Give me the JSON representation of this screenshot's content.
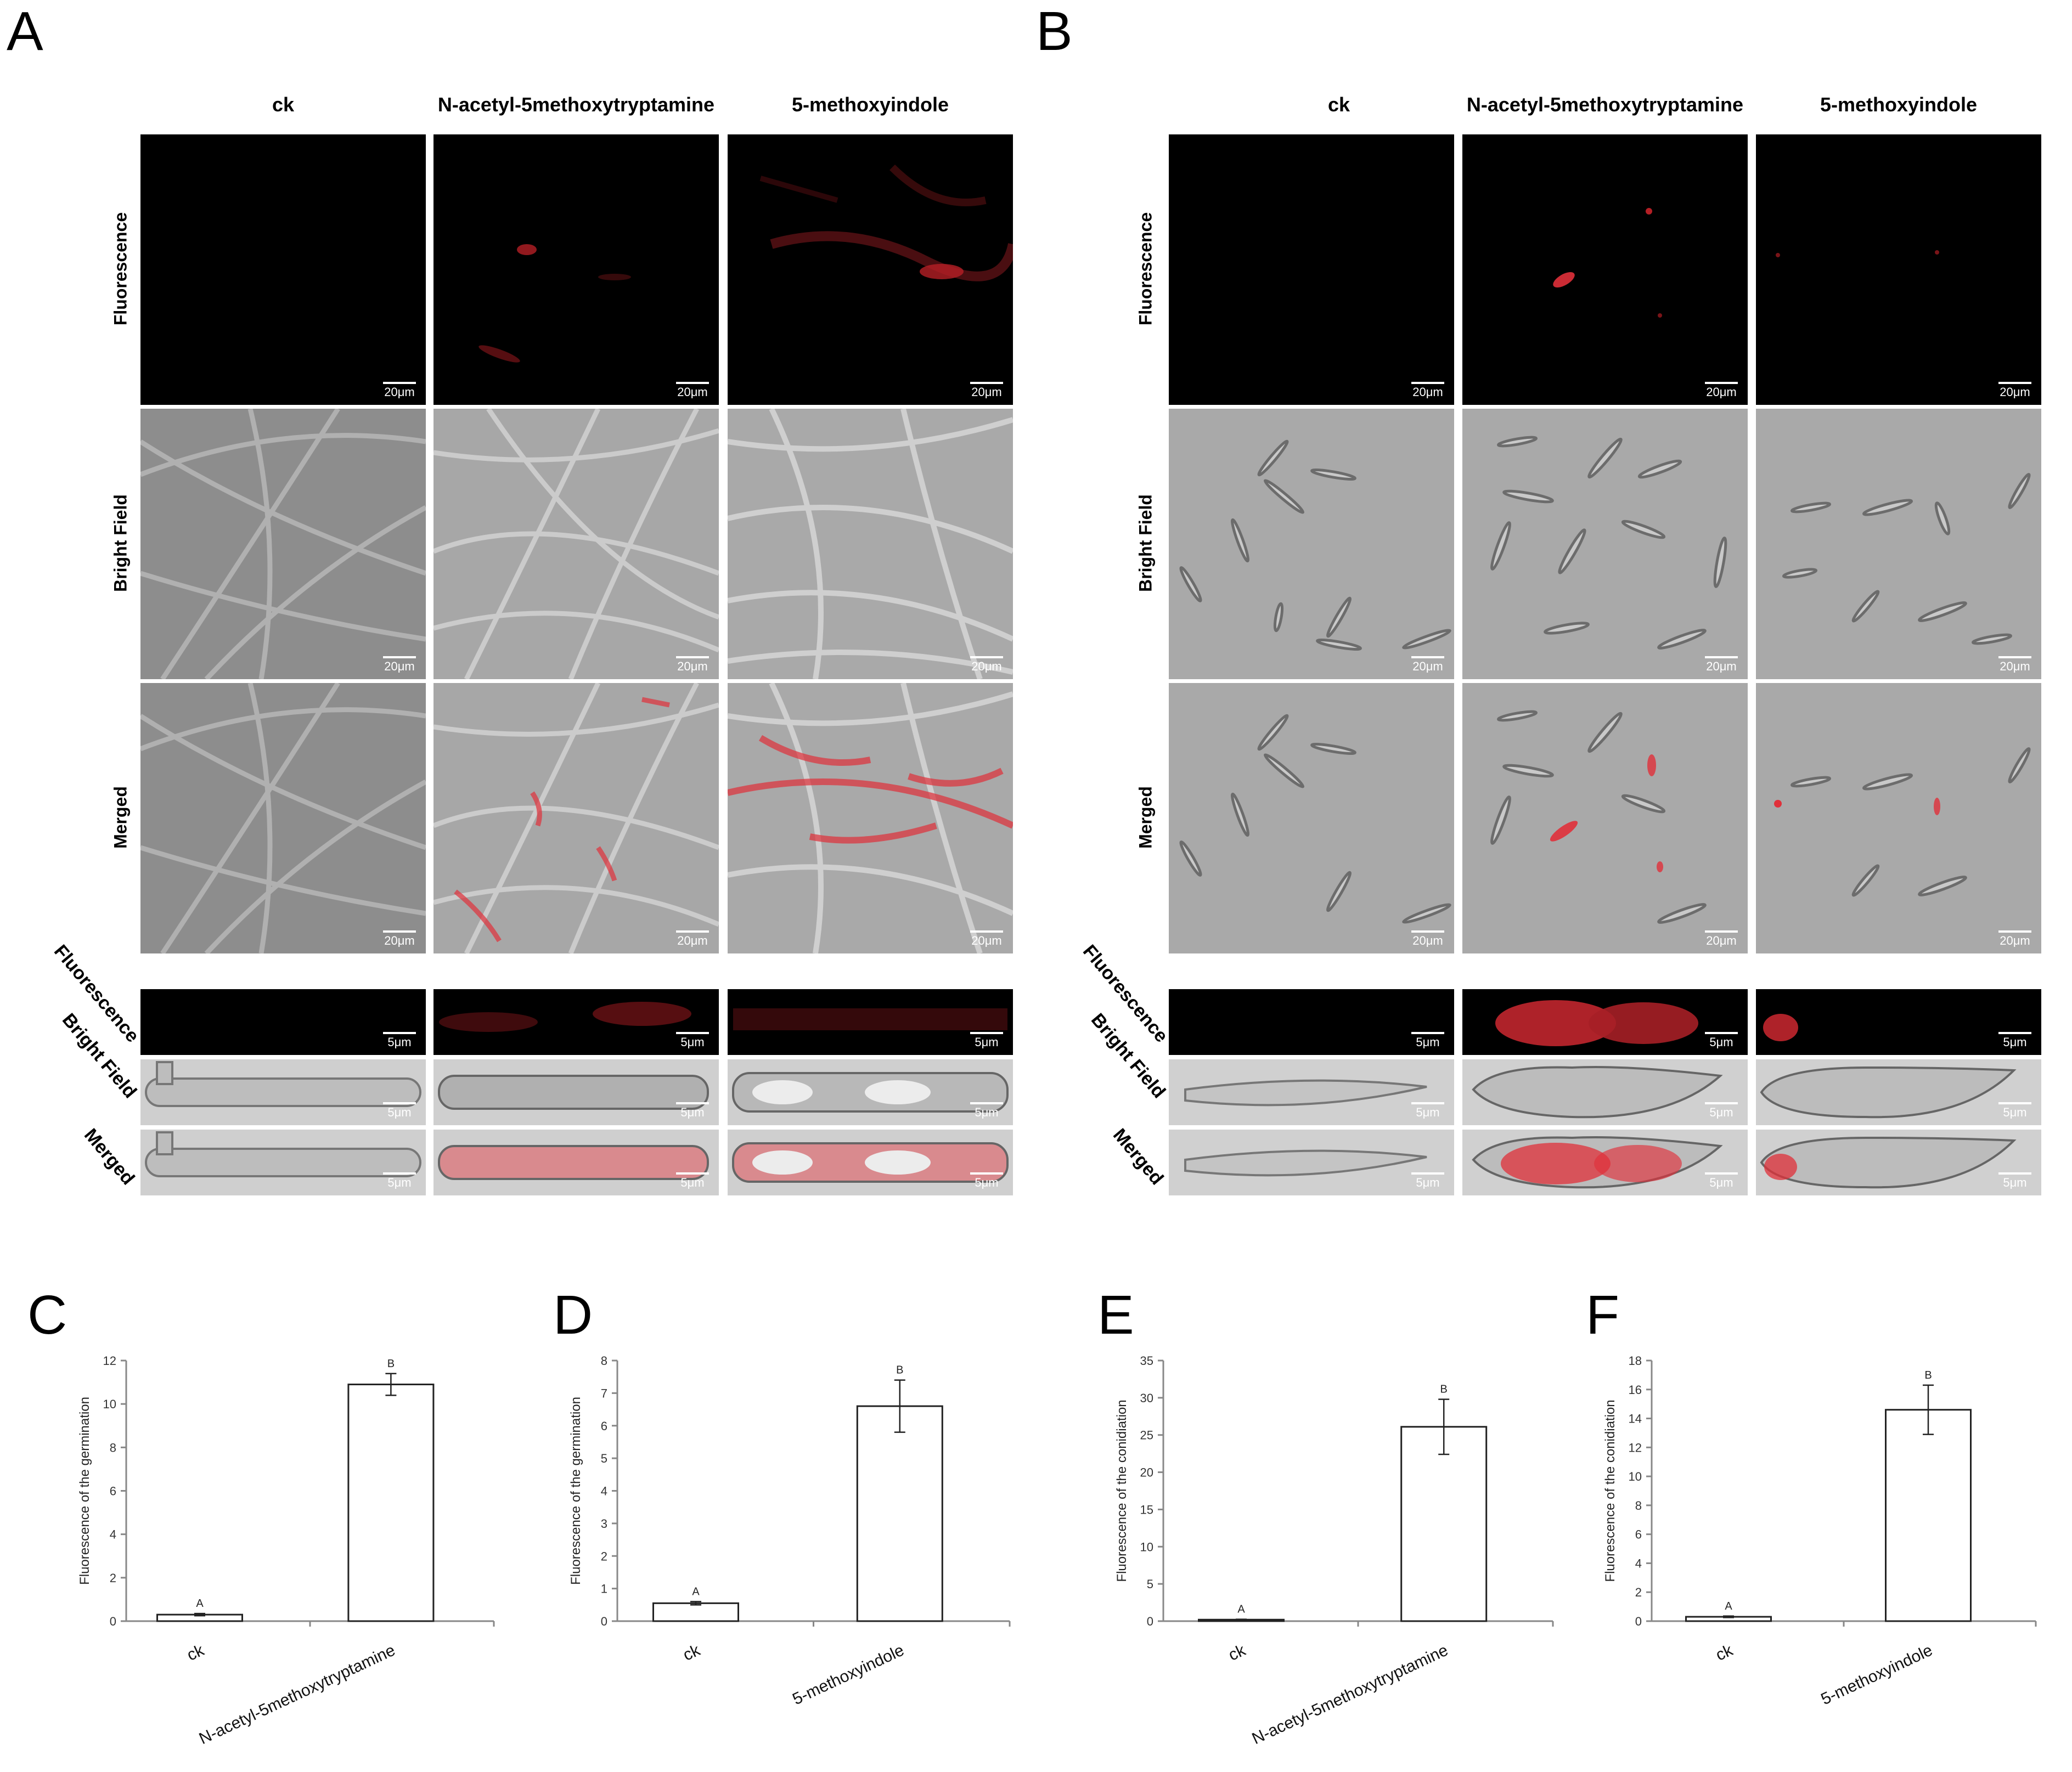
{
  "panel_letters": [
    "A",
    "B",
    "C",
    "D",
    "E",
    "F"
  ],
  "panelA": {
    "columns": [
      "ck",
      "N-acetyl-5methoxytryptamine",
      "5-methoxyindole"
    ],
    "rows": [
      "Fluorescence",
      "Bright Field",
      "Merged"
    ],
    "scale_large": "20μm",
    "scale_small": "5μm"
  },
  "panelB": {
    "columns": [
      "ck",
      "N-acetyl-5methoxytryptamine",
      "5-methoxyindole"
    ],
    "rows": [
      "Fluorescence",
      "Bright Field",
      "Merged"
    ],
    "scale_large": "20μm",
    "scale_small": "5μm"
  },
  "colors": {
    "fluorescence_red": "#e0303a",
    "bar_fill": "#ffffff",
    "axis": "#888888"
  },
  "chart_data": [
    {
      "panel": "C",
      "type": "bar",
      "categories": [
        "ck",
        "N-acetyl-5methoxytryptamine"
      ],
      "values": [
        0.3,
        10.9
      ],
      "errors": [
        0.05,
        0.5
      ],
      "sig_letters": [
        "A",
        "B"
      ],
      "ylabel": "Fluorescence of the germination",
      "ylim": [
        0,
        12
      ],
      "yticks": [
        0,
        2,
        4,
        6,
        8,
        10,
        12
      ]
    },
    {
      "panel": "D",
      "type": "bar",
      "categories": [
        "ck",
        "5-methoxyindole"
      ],
      "values": [
        0.55,
        6.6
      ],
      "errors": [
        0.05,
        0.8
      ],
      "sig_letters": [
        "A",
        "B"
      ],
      "ylabel": "Fluorescence of the germination",
      "ylim": [
        0,
        8
      ],
      "yticks": [
        0,
        1,
        2,
        3,
        4,
        5,
        6,
        7,
        8
      ]
    },
    {
      "panel": "E",
      "type": "bar",
      "categories": [
        "ck",
        "N-acetyl-5methoxytryptamine"
      ],
      "values": [
        0.2,
        26.1
      ],
      "errors": [
        0.05,
        3.7
      ],
      "sig_letters": [
        "A",
        "B"
      ],
      "ylabel": "Fluorescence of the conidiation",
      "ylim": [
        0,
        35
      ],
      "yticks": [
        0,
        5,
        10,
        15,
        20,
        25,
        30,
        35
      ]
    },
    {
      "panel": "F",
      "type": "bar",
      "categories": [
        "ck",
        "5-methoxyindole"
      ],
      "values": [
        0.3,
        14.6
      ],
      "errors": [
        0.05,
        1.7
      ],
      "sig_letters": [
        "A",
        "B"
      ],
      "ylabel": "Fluorescence of the conidiation",
      "ylim": [
        0,
        18
      ],
      "yticks": [
        0,
        2,
        4,
        6,
        8,
        10,
        12,
        14,
        16,
        18
      ]
    }
  ]
}
